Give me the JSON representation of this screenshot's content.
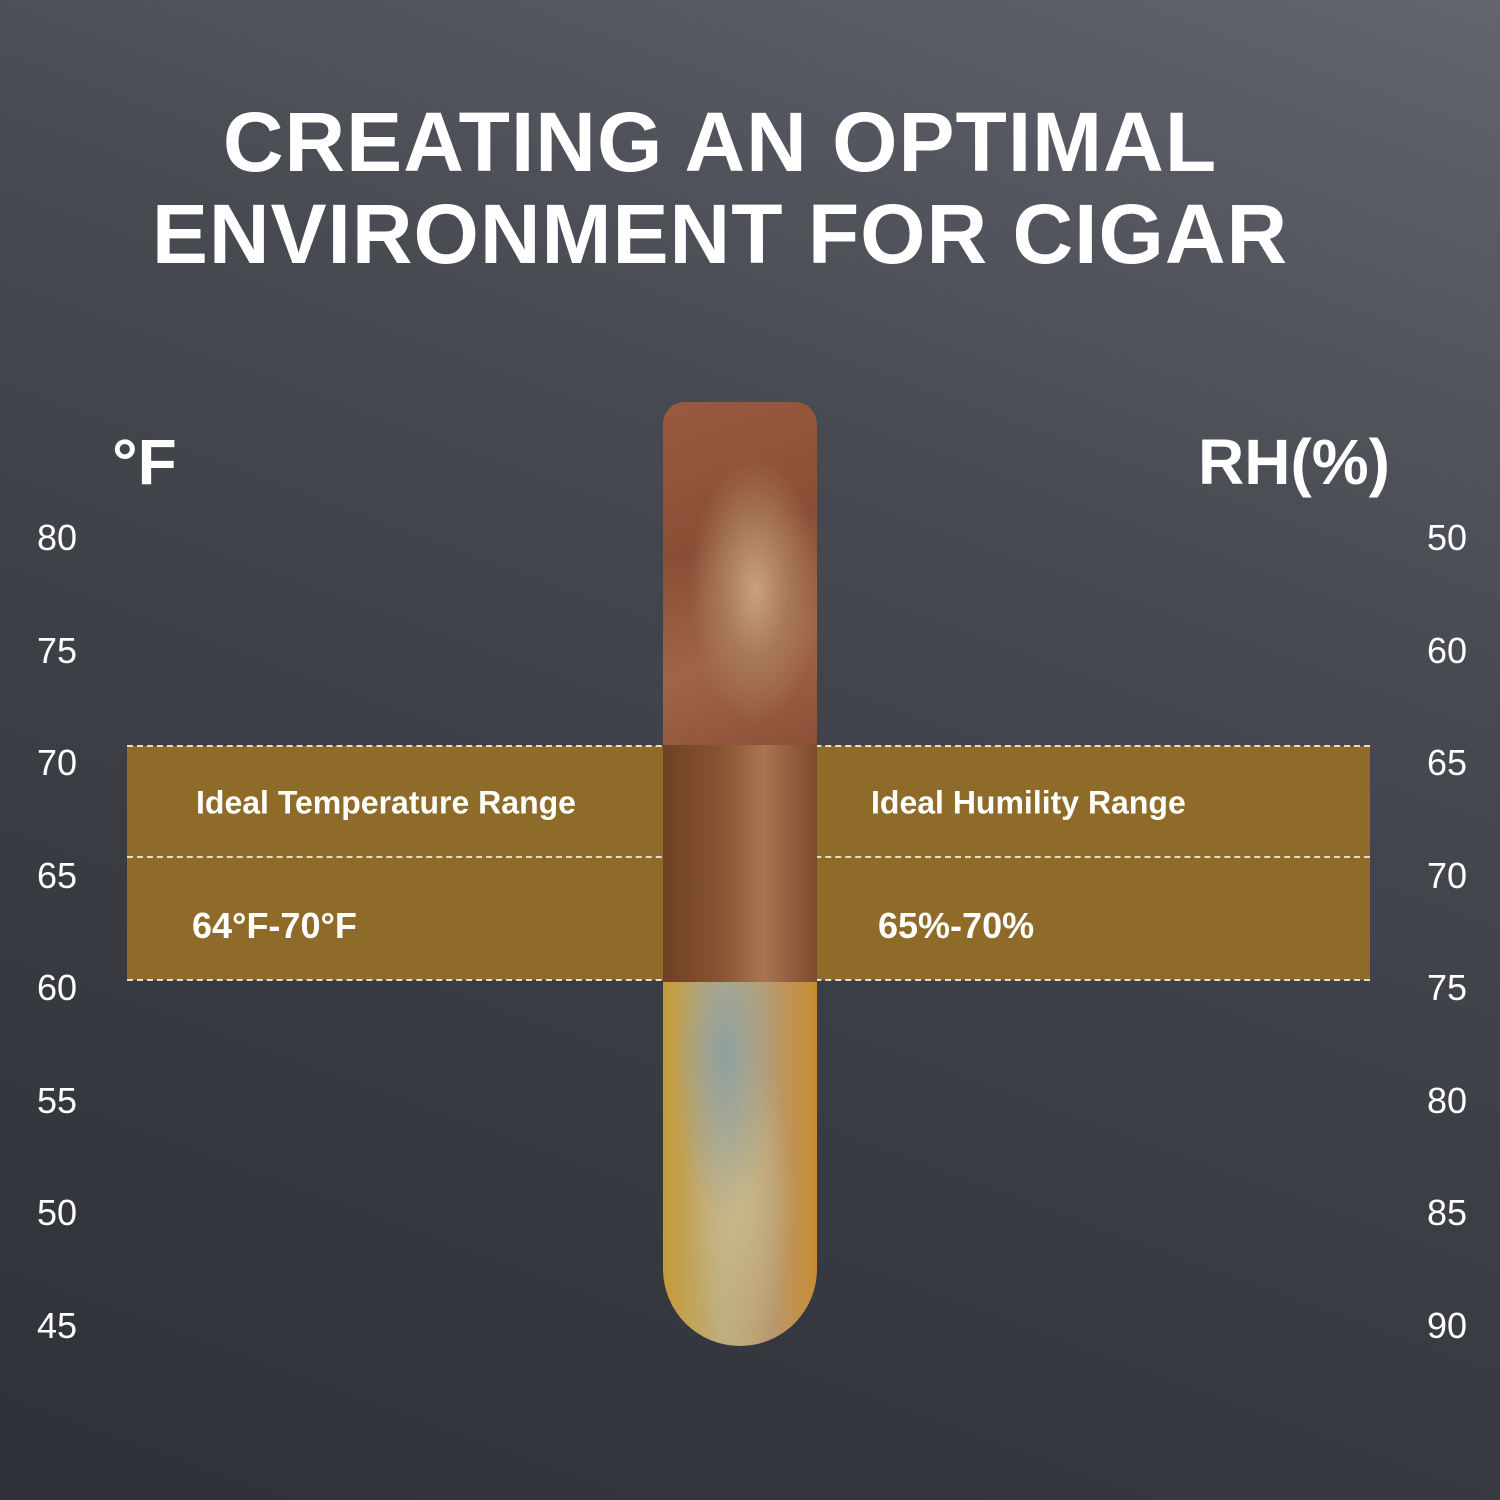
{
  "title": {
    "line1": "CREATING AN OPTIMAL",
    "line2": "ENVIRONMENT FOR CIGAR"
  },
  "left_axis": {
    "unit": "°F",
    "ticks": [
      "80",
      "75",
      "70",
      "65",
      "60",
      "55",
      "50",
      "45"
    ]
  },
  "right_axis": {
    "unit": "RH(%)",
    "ticks": [
      "50",
      "60",
      "65",
      "70",
      "75",
      "80",
      "85",
      "90"
    ]
  },
  "band": {
    "color": "#8f6b2a",
    "temperature_label": "Ideal Temperature Range",
    "temperature_value": "64°F-70°F",
    "humidity_label": "Ideal Humility Range",
    "humidity_value": "65%-70%"
  }
}
